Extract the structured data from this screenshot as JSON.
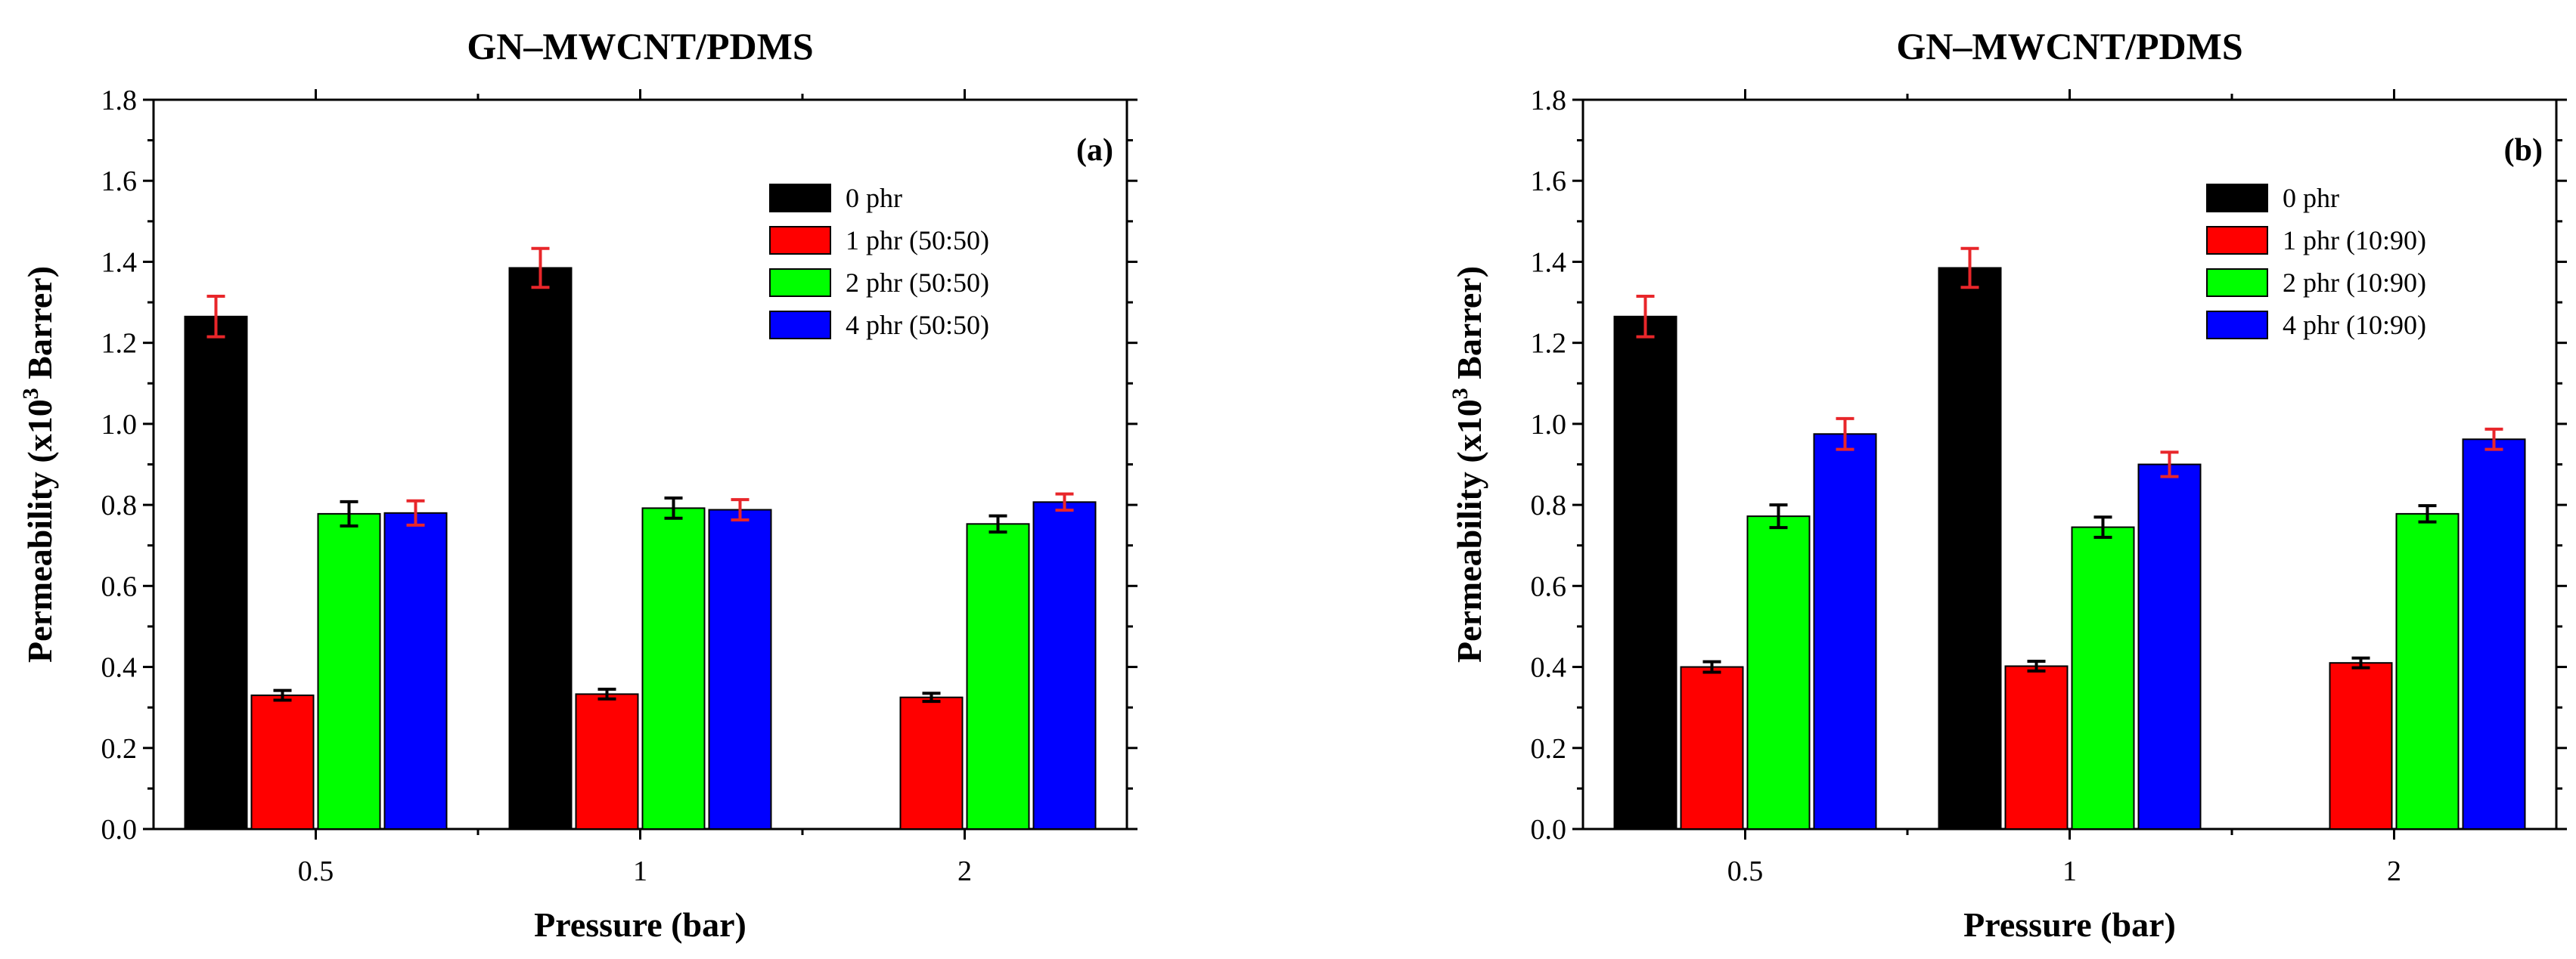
{
  "chart_data": [
    {
      "type": "bar",
      "panel": "(a)",
      "title": "GN–MWCNT/PDMS",
      "xlabel": "Pressure (bar)",
      "ylabel": {
        "prefix": "Permeability (x10",
        "sup": "3",
        "suffix": " Barrer)"
      },
      "ylim": [
        0,
        1.8
      ],
      "yticks": [
        "0.0",
        "0.2",
        "0.4",
        "0.6",
        "0.8",
        "1.0",
        "1.2",
        "1.4",
        "1.6",
        "1.8"
      ],
      "ytick_values": [
        0,
        0.2,
        0.4,
        0.6,
        0.8,
        1.0,
        1.2,
        1.4,
        1.6,
        1.8
      ],
      "categories": [
        "0.5",
        "1",
        "2"
      ],
      "legend_position": "top-right",
      "series": [
        {
          "name": "0 phr",
          "color": "#000000",
          "error_color": "#e8262a",
          "values": [
            1.265,
            1.385,
            null
          ],
          "errors": [
            0.05,
            0.048,
            null
          ]
        },
        {
          "name": "1 phr (50:50)",
          "color": "#ff0000",
          "error_color": "#000000",
          "values": [
            0.33,
            0.333,
            0.325
          ],
          "errors": [
            0.012,
            0.012,
            0.01
          ]
        },
        {
          "name": "2 phr (50:50)",
          "color": "#00ff00",
          "error_color": "#000000",
          "values": [
            0.778,
            0.792,
            0.753
          ],
          "errors": [
            0.03,
            0.025,
            0.02
          ]
        },
        {
          "name": "4 phr (50:50)",
          "color": "#0000ff",
          "error_color": "#e8262a",
          "values": [
            0.78,
            0.788,
            0.807
          ],
          "errors": [
            0.03,
            0.025,
            0.02
          ]
        }
      ]
    },
    {
      "type": "bar",
      "panel": "(b)",
      "title": "GN–MWCNT/PDMS",
      "xlabel": "Pressure (bar)",
      "ylabel": {
        "prefix": "Permeability (x10",
        "sup": "3",
        "suffix": " Barrer)"
      },
      "ylim": [
        0,
        1.8
      ],
      "yticks": [
        "0.0",
        "0.2",
        "0.4",
        "0.6",
        "0.8",
        "1.0",
        "1.2",
        "1.4",
        "1.6",
        "1.8"
      ],
      "ytick_values": [
        0,
        0.2,
        0.4,
        0.6,
        0.8,
        1.0,
        1.2,
        1.4,
        1.6,
        1.8
      ],
      "categories": [
        "0.5",
        "1",
        "2"
      ],
      "legend_position": "top-right",
      "series": [
        {
          "name": "0 phr",
          "color": "#000000",
          "error_color": "#e8262a",
          "values": [
            1.265,
            1.385,
            null
          ],
          "errors": [
            0.05,
            0.048,
            null
          ]
        },
        {
          "name": "1 phr (10:90)",
          "color": "#ff0000",
          "error_color": "#000000",
          "values": [
            0.4,
            0.402,
            0.41
          ],
          "errors": [
            0.013,
            0.012,
            0.012
          ]
        },
        {
          "name": "2 phr (10:90)",
          "color": "#00ff00",
          "error_color": "#000000",
          "values": [
            0.772,
            0.745,
            0.778
          ],
          "errors": [
            0.028,
            0.025,
            0.02
          ]
        },
        {
          "name": "4 phr (10:90)",
          "color": "#0000ff",
          "error_color": "#e8262a",
          "values": [
            0.975,
            0.9,
            0.962
          ],
          "errors": [
            0.038,
            0.03,
            0.025
          ]
        }
      ]
    }
  ]
}
